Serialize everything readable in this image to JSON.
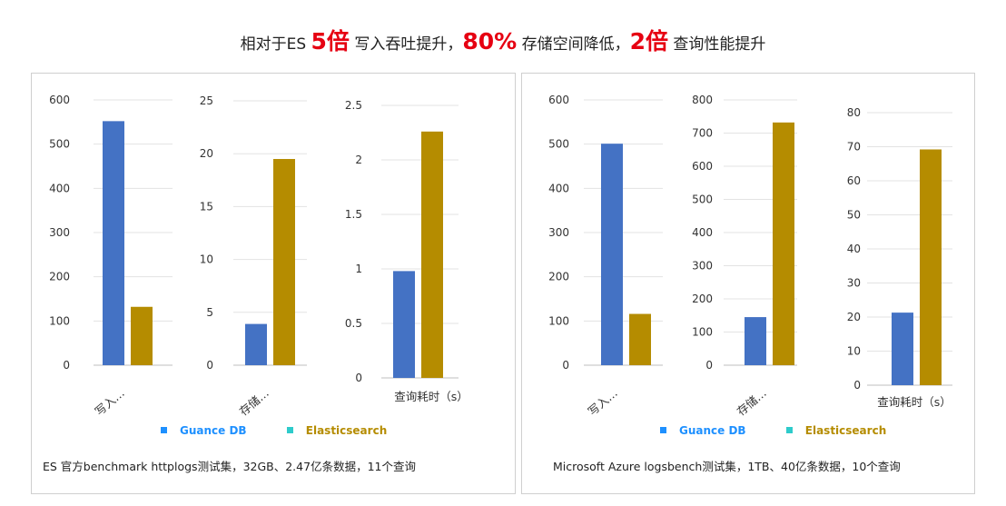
{
  "headline": {
    "p1": "相对于ES ",
    "h1": "5倍",
    "p2": " 写入吞吐提升，",
    "h2": "80%",
    "p3": " 存储空间降低，",
    "h3": "2倍",
    "p4": " 查询性能提升"
  },
  "colors": {
    "headline_highlight": "#e60012",
    "guance_bar": "#4472c4",
    "es_bar": "#b58c00",
    "guance_legend_text": "#1e90ff",
    "es_legend_text": "#b58c00",
    "guance_marker": "#1e90ff",
    "es_marker": "#2ecbcb"
  },
  "legend": {
    "guance": "Guance DB",
    "elasticsearch": "Elasticsearch"
  },
  "captions": {
    "left": "ES 官方benchmark httplogs测试集，32GB、2.47亿条数据，11个查询",
    "right": "Microsoft Azure logsbench测试集，1TB、40亿条数据，10个查询"
  },
  "chart_data": [
    {
      "type": "bar",
      "categories": [
        "写入…"
      ],
      "series": [
        {
          "name": "Guance DB",
          "values": [
            552
          ]
        },
        {
          "name": "Elasticsearch",
          "values": [
            132
          ]
        }
      ],
      "ylim": [
        0,
        600
      ],
      "yticks": [
        "0",
        "100",
        "200",
        "300",
        "400",
        "500",
        "600"
      ],
      "grid": true,
      "legend": "bottom"
    },
    {
      "type": "bar",
      "categories": [
        "存储…"
      ],
      "series": [
        {
          "name": "Guance DB",
          "values": [
            3.9
          ]
        },
        {
          "name": "Elasticsearch",
          "values": [
            19.5
          ]
        }
      ],
      "ylim": [
        0,
        25
      ],
      "yticks": [
        "0",
        "5",
        "10",
        "15",
        "20",
        "25"
      ],
      "grid": true,
      "legend": "bottom"
    },
    {
      "type": "bar",
      "categories": [
        "查询耗时（s）"
      ],
      "series": [
        {
          "name": "Guance DB",
          "values": [
            0.98
          ]
        },
        {
          "name": "Elasticsearch",
          "values": [
            2.26
          ]
        }
      ],
      "ylim": [
        0,
        2.5
      ],
      "yticks": [
        "0",
        "0.5",
        "1",
        "1.5",
        "2",
        "2.5"
      ],
      "grid": true,
      "legend": "bottom"
    },
    {
      "type": "bar",
      "categories": [
        "写入…"
      ],
      "series": [
        {
          "name": "Guance DB",
          "values": [
            501
          ]
        },
        {
          "name": "Elasticsearch",
          "values": [
            116
          ]
        }
      ],
      "ylim": [
        0,
        600
      ],
      "yticks": [
        "0",
        "100",
        "200",
        "300",
        "400",
        "500",
        "600"
      ],
      "grid": true,
      "legend": "bottom"
    },
    {
      "type": "bar",
      "categories": [
        "存储…"
      ],
      "series": [
        {
          "name": "Guance DB",
          "values": [
            145
          ]
        },
        {
          "name": "Elasticsearch",
          "values": [
            732
          ]
        }
      ],
      "ylim": [
        0,
        800
      ],
      "yticks": [
        "0",
        "100",
        "200",
        "300",
        "400",
        "500",
        "600",
        "700",
        "800"
      ],
      "grid": true,
      "legend": "bottom"
    },
    {
      "type": "bar",
      "categories": [
        "查询耗时（s）"
      ],
      "series": [
        {
          "name": "Guance DB",
          "values": [
            21.3
          ]
        },
        {
          "name": "Elasticsearch",
          "values": [
            69.2
          ]
        }
      ],
      "ylim": [
        0,
        80
      ],
      "yticks": [
        "0",
        "10",
        "20",
        "30",
        "40",
        "50",
        "60",
        "70",
        "80"
      ],
      "grid": true,
      "legend": "bottom"
    }
  ]
}
